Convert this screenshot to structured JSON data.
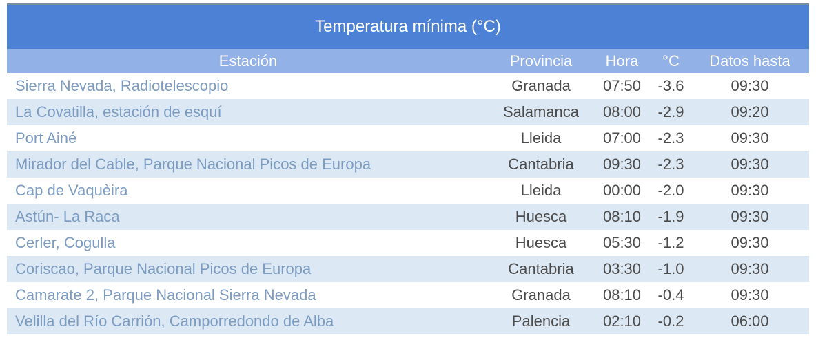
{
  "colors": {
    "title_bar_bg": "#4d81d6",
    "header_bar_bg": "#92b1e6",
    "row_alt_bg": "#dce8f3",
    "station_link_text": "#7d9cc2",
    "data_text": "#4c4c4c",
    "header_text": "#ffffff",
    "top_border": "#75909c"
  },
  "chart_data": {
    "type": "table",
    "title": "Temperatura mínima (°C)",
    "columns": [
      "Estación",
      "Provincia",
      "Hora",
      "°C",
      "Datos hasta"
    ],
    "rows": [
      [
        "Sierra Nevada, Radiotelescopio",
        "Granada",
        "07:50",
        "-3.6",
        "09:30"
      ],
      [
        "La Covatilla, estación de esquí",
        "Salamanca",
        "08:00",
        "-2.9",
        "09:20"
      ],
      [
        "Port Ainé",
        "Lleida",
        "07:00",
        "-2.3",
        "09:30"
      ],
      [
        "Mirador del Cable, Parque Nacional Picos de Europa",
        "Cantabria",
        "09:30",
        "-2.3",
        "09:30"
      ],
      [
        "Cap de Vaquèira",
        "Lleida",
        "00:00",
        "-2.0",
        "09:30"
      ],
      [
        "Astún- La Raca",
        "Huesca",
        "08:10",
        "-1.9",
        "09:30"
      ],
      [
        "Cerler, Cogulla",
        "Huesca",
        "05:30",
        "-1.2",
        "09:30"
      ],
      [
        "Coriscao, Parque Nacional Picos de Europa",
        "Cantabria",
        "03:30",
        "-1.0",
        "09:30"
      ],
      [
        "Camarate 2, Parque Nacional Sierra Nevada",
        "Granada",
        "08:10",
        "-0.4",
        "09:30"
      ],
      [
        "Velilla del Río Carrión, Camporredondo de Alba",
        "Palencia",
        "02:10",
        "-0.2",
        "06:00"
      ]
    ],
    "temps_c_numeric": [
      -3.6,
      -2.9,
      -2.3,
      -2.3,
      -2.0,
      -1.9,
      -1.2,
      -1.0,
      -0.4,
      -0.2
    ]
  }
}
